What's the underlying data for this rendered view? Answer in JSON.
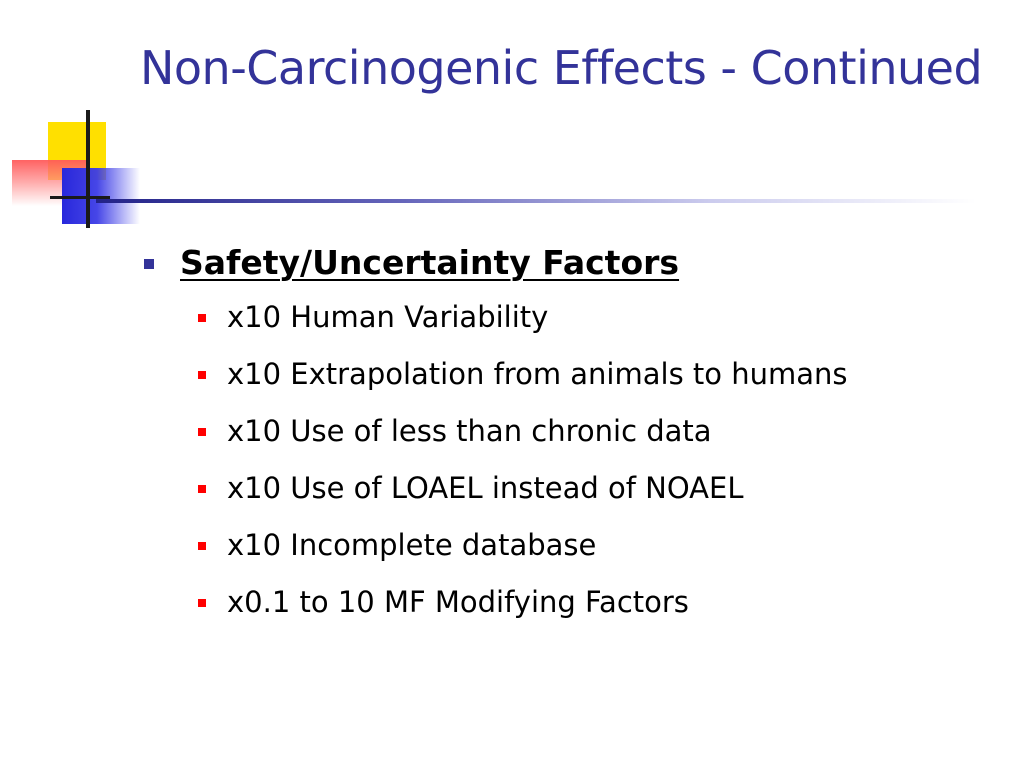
{
  "slide": {
    "title": "Non-Carcinogenic Effects - Continued",
    "heading": "Safety/Uncertainty Factors",
    "items": [
      {
        "text": "x10 Human Variability"
      },
      {
        "text": "x10 Extrapolation from animals to humans"
      },
      {
        "text": "x10 Use of less than chronic data"
      },
      {
        "text": "x10 Use of LOAEL instead of NOAEL"
      },
      {
        "text": "x10 Incomplete database"
      },
      {
        "text": "x0.1 to 10 MF Modifying Factors"
      }
    ]
  },
  "colors": {
    "title": "#333399",
    "heading_bullet": "#333399",
    "item_bullet": "#ff0000",
    "logo_yellow": "#ffe000",
    "logo_blue": "#2828dc",
    "logo_red": "#ff5a5a"
  },
  "icons": {
    "logo": "decorative-squares-logo",
    "heading_bullet": "square-bullet-blue",
    "item_bullet": "square-bullet-red"
  }
}
